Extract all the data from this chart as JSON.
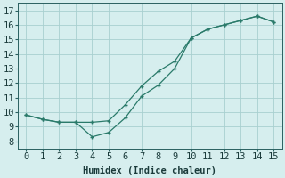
{
  "upper_x": [
    0,
    1,
    2,
    3,
    4,
    5,
    6,
    7,
    8,
    9,
    10,
    11,
    12,
    13,
    14,
    15
  ],
  "upper_y": [
    9.8,
    9.5,
    9.3,
    9.3,
    9.3,
    9.4,
    10.5,
    11.8,
    12.8,
    13.5,
    15.1,
    15.7,
    16.0,
    16.3,
    16.6,
    16.2
  ],
  "lower_x": [
    0,
    1,
    2,
    3,
    4,
    5,
    6,
    7,
    8,
    9,
    10,
    11,
    12,
    13,
    14,
    15
  ],
  "lower_y": [
    9.8,
    9.5,
    9.3,
    9.3,
    8.3,
    8.6,
    9.6,
    11.1,
    11.85,
    13.0,
    15.1,
    15.7,
    16.0,
    16.3,
    16.6,
    16.2
  ],
  "line_color": "#2a7a6a",
  "bg_color": "#d6eeee",
  "grid_color": "#a8d0d0",
  "xlabel": "Humidex (Indice chaleur)",
  "xlim": [
    -0.5,
    15.5
  ],
  "ylim": [
    7.5,
    17.5
  ],
  "xticks": [
    0,
    1,
    2,
    3,
    4,
    5,
    6,
    7,
    8,
    9,
    10,
    11,
    12,
    13,
    14,
    15
  ],
  "yticks": [
    8,
    9,
    10,
    11,
    12,
    13,
    14,
    15,
    16,
    17
  ],
  "fontsize": 7.5
}
